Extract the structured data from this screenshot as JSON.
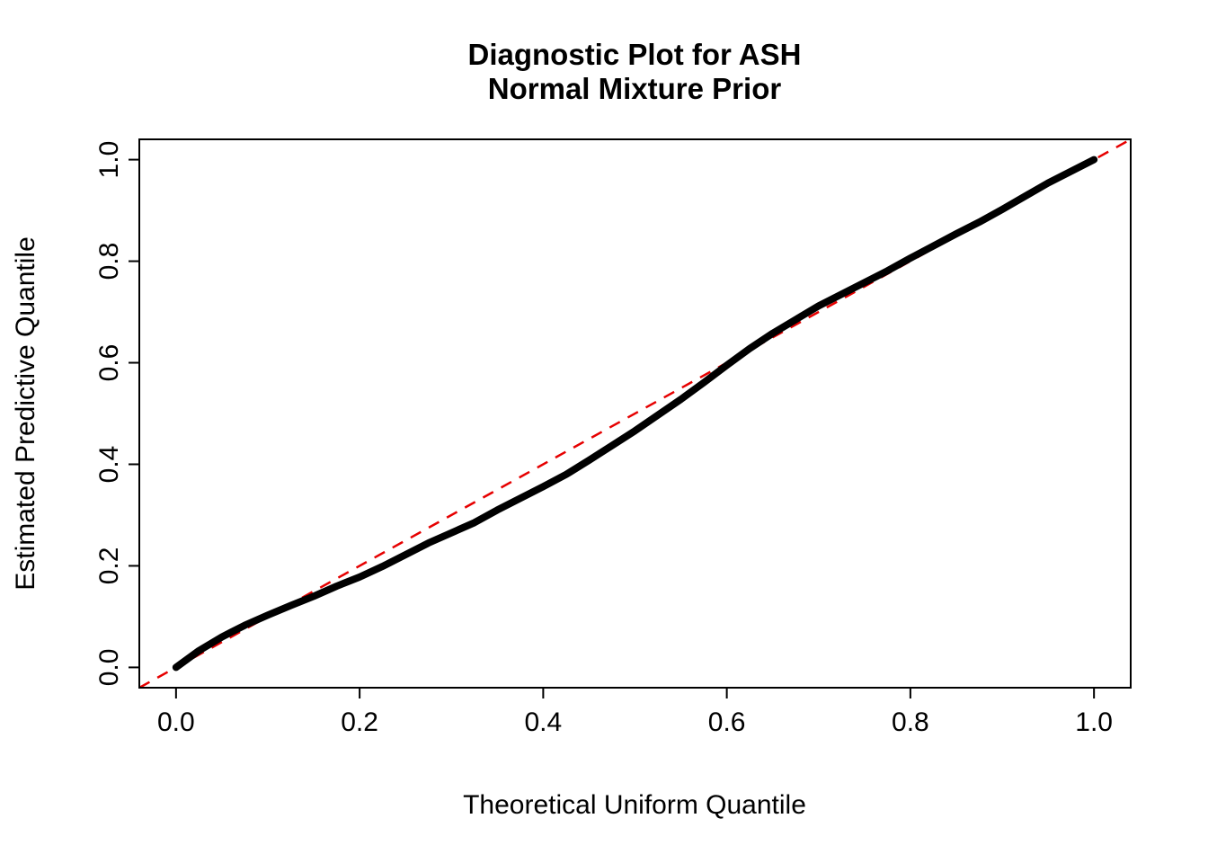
{
  "chart_data": {
    "type": "scatter",
    "title_line1": "Diagnostic Plot for ASH",
    "title_line2": "Normal Mixture Prior",
    "xlabel": "Theoretical Uniform Quantile",
    "ylabel": "Estimated Predictive Quantile",
    "xlim": [
      -0.04,
      1.04
    ],
    "ylim": [
      -0.04,
      1.04
    ],
    "x_ticks": [
      0.0,
      0.2,
      0.4,
      0.6,
      0.8,
      1.0
    ],
    "y_ticks": [
      0.0,
      0.2,
      0.4,
      0.6,
      0.8,
      1.0
    ],
    "x_tick_labels": [
      "0.0",
      "0.2",
      "0.4",
      "0.6",
      "0.8",
      "1.0"
    ],
    "y_tick_labels": [
      "0.0",
      "0.2",
      "0.4",
      "0.6",
      "0.8",
      "1.0"
    ],
    "grid": false,
    "legend": "none",
    "colors": {
      "points": "#000000",
      "reference_line": "#e60000",
      "box": "#000000"
    },
    "reference_line": {
      "style": "dashed",
      "from": [
        -0.04,
        -0.04
      ],
      "to": [
        1.04,
        1.04
      ]
    },
    "series": [
      {
        "name": "estimated-vs-theoretical-quantile",
        "x": [
          0.0,
          0.025,
          0.05,
          0.075,
          0.1,
          0.125,
          0.15,
          0.175,
          0.2,
          0.225,
          0.25,
          0.275,
          0.3,
          0.325,
          0.35,
          0.375,
          0.4,
          0.425,
          0.45,
          0.475,
          0.5,
          0.525,
          0.55,
          0.575,
          0.6,
          0.625,
          0.65,
          0.675,
          0.7,
          0.725,
          0.75,
          0.775,
          0.8,
          0.825,
          0.85,
          0.875,
          0.9,
          0.925,
          0.95,
          0.975,
          1.0
        ],
        "y": [
          0.0,
          0.033,
          0.06,
          0.083,
          0.103,
          0.122,
          0.14,
          0.16,
          0.178,
          0.199,
          0.222,
          0.245,
          0.265,
          0.285,
          0.31,
          0.333,
          0.356,
          0.38,
          0.408,
          0.437,
          0.466,
          0.497,
          0.528,
          0.561,
          0.595,
          0.628,
          0.658,
          0.685,
          0.712,
          0.735,
          0.758,
          0.781,
          0.806,
          0.83,
          0.854,
          0.877,
          0.902,
          0.928,
          0.954,
          0.977,
          1.0
        ]
      }
    ]
  }
}
